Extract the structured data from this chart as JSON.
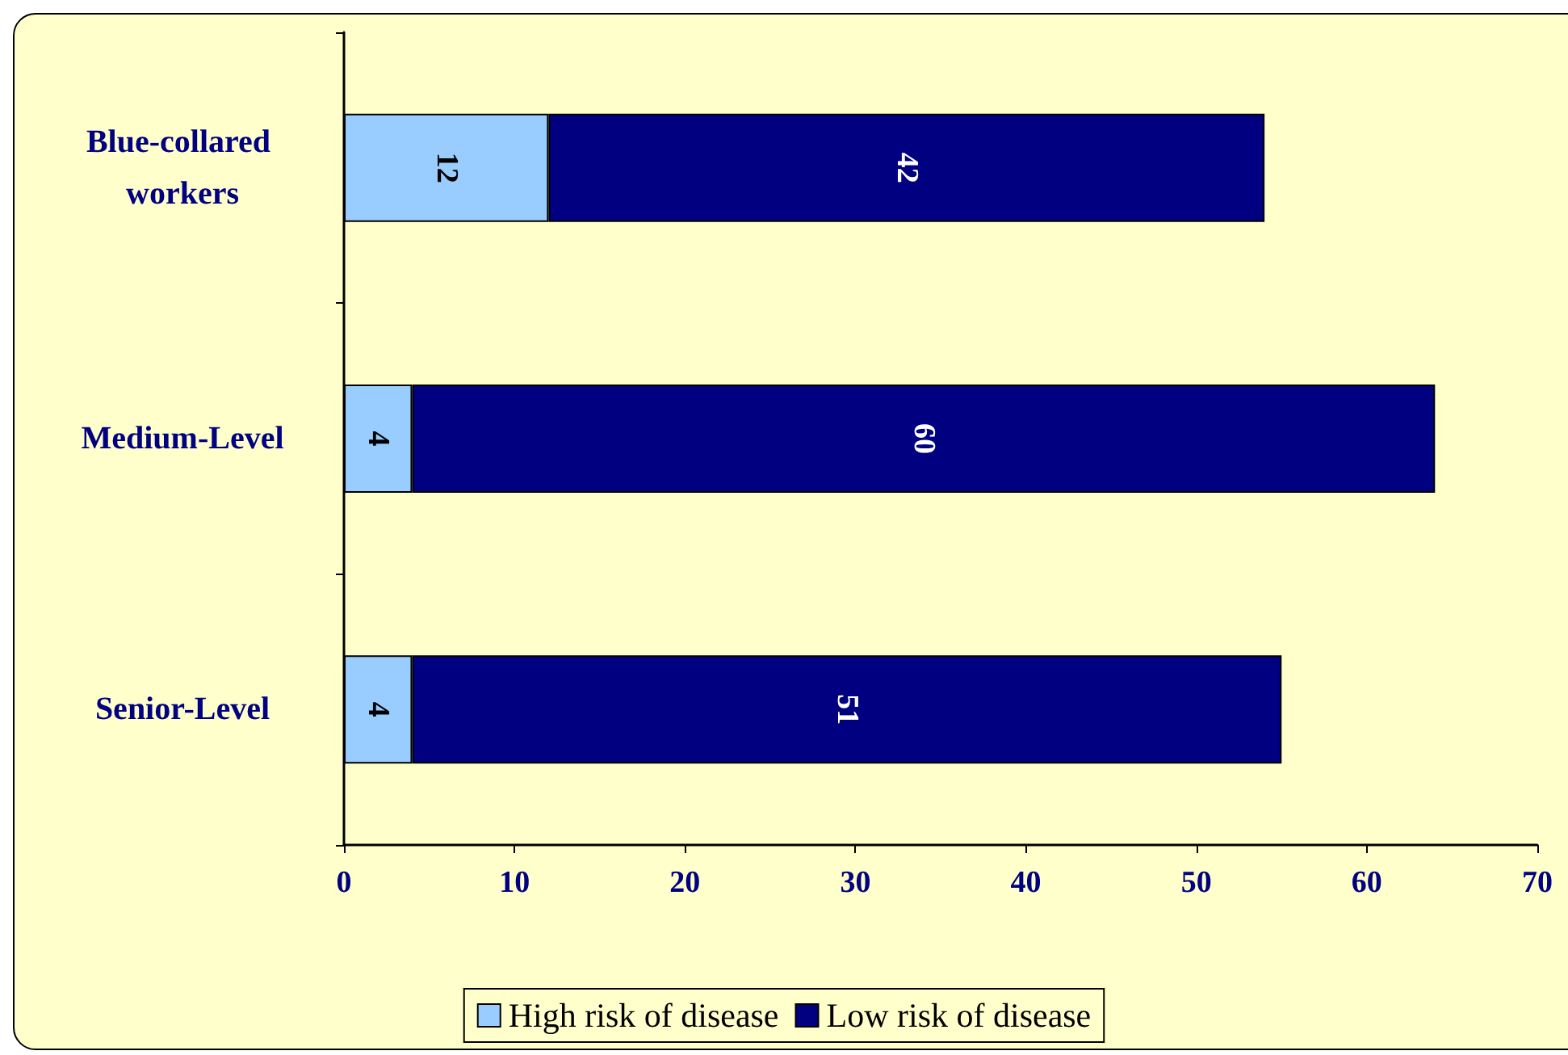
{
  "chart_data": {
    "type": "bar",
    "orientation": "horizontal",
    "stacked": true,
    "categories": [
      "Blue-collared workers",
      "Medium-Level",
      "Senior-Level"
    ],
    "series": [
      {
        "name": "High risk of disease",
        "color": "#99ccff",
        "values": [
          12,
          4,
          4
        ]
      },
      {
        "name": "Low risk of disease",
        "color": "#000080",
        "values": [
          42,
          60,
          51
        ]
      }
    ],
    "xlim": [
      0,
      70
    ],
    "xticks": [
      0,
      10,
      20,
      30,
      40,
      50,
      60,
      70
    ],
    "data_labels": true,
    "legend": "bottom"
  }
}
